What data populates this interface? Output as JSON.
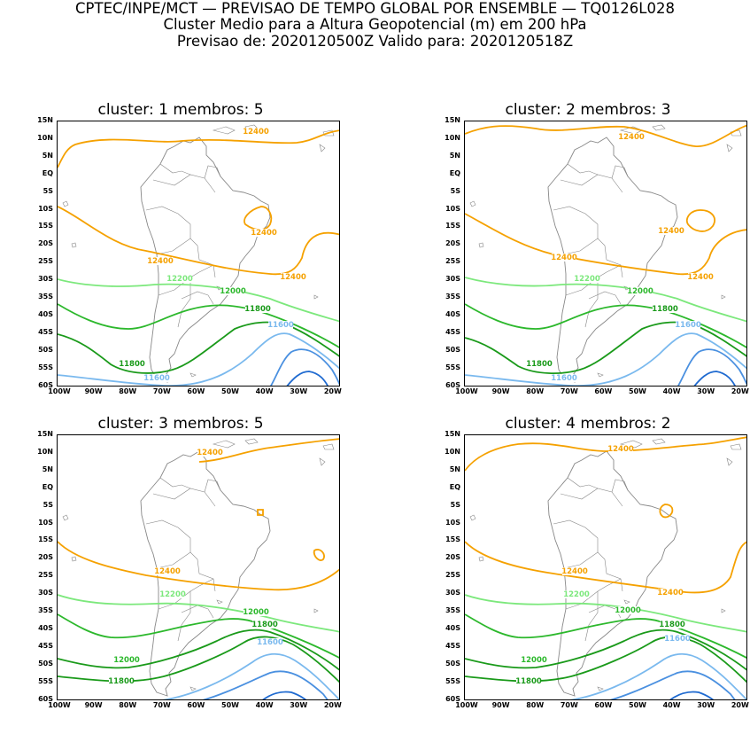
{
  "header": {
    "line1": "CPTEC/INPE/MCT — PREVISAO DE TEMPO GLOBAL POR ENSEMBLE — TQ0126L028",
    "line2": "Cluster Medio para a Altura Geopotencial (m) em 200 hPa",
    "line3": "Previsao de: 2020120500Z    Valido para: 2020120518Z"
  },
  "axes": {
    "lat_labels": [
      "15N",
      "10N",
      "5N",
      "EQ",
      "5S",
      "10S",
      "15S",
      "20S",
      "25S",
      "30S",
      "35S",
      "40S",
      "45S",
      "50S",
      "55S",
      "60S"
    ],
    "lon_labels": [
      "100W",
      "90W",
      "80W",
      "70W",
      "60W",
      "50W",
      "40W",
      "30W",
      "20W"
    ]
  },
  "colors": {
    "c12400": "#f5a100",
    "c12200": "#7ce87c",
    "c12000": "#2cb82c",
    "c11800": "#1a9a1a",
    "c11600": "#7ab9ee",
    "c11400": "#4a90e0",
    "c11200": "#1f6ad0",
    "coast": "#888888"
  },
  "panels": [
    {
      "title": "cluster: 1   membros: 5",
      "contour_labels": [
        {
          "value": "12400",
          "color_key": "c12400"
        },
        {
          "value": "12400",
          "color_key": "c12400"
        },
        {
          "value": "12400",
          "color_key": "c12400"
        },
        {
          "value": "12400",
          "color_key": "c12400"
        },
        {
          "value": "12200",
          "color_key": "c12200"
        },
        {
          "value": "12000",
          "color_key": "c12000"
        },
        {
          "value": "11800",
          "color_key": "c11800"
        },
        {
          "value": "11800",
          "color_key": "c11800"
        },
        {
          "value": "11600",
          "color_key": "c11600"
        },
        {
          "value": "11600",
          "color_key": "c11600"
        }
      ]
    },
    {
      "title": "cluster: 2   membros: 3",
      "contour_labels": [
        {
          "value": "12400",
          "color_key": "c12400"
        },
        {
          "value": "12400",
          "color_key": "c12400"
        },
        {
          "value": "12400",
          "color_key": "c12400"
        },
        {
          "value": "12400",
          "color_key": "c12400"
        },
        {
          "value": "12200",
          "color_key": "c12200"
        },
        {
          "value": "12000",
          "color_key": "c12000"
        },
        {
          "value": "11800",
          "color_key": "c11800"
        },
        {
          "value": "11800",
          "color_key": "c11800"
        },
        {
          "value": "11600",
          "color_key": "c11600"
        },
        {
          "value": "11600",
          "color_key": "c11600"
        }
      ]
    },
    {
      "title": "cluster: 3   membros: 5",
      "contour_labels": [
        {
          "value": "12400",
          "color_key": "c12400"
        },
        {
          "value": "12400",
          "color_key": "c12400"
        },
        {
          "value": "12200",
          "color_key": "c12200"
        },
        {
          "value": "12000",
          "color_key": "c12000"
        },
        {
          "value": "12000",
          "color_key": "c12000"
        },
        {
          "value": "11800",
          "color_key": "c11800"
        },
        {
          "value": "11800",
          "color_key": "c11800"
        },
        {
          "value": "11600",
          "color_key": "c11600"
        }
      ]
    },
    {
      "title": "cluster: 4   membros: 2",
      "contour_labels": [
        {
          "value": "12400",
          "color_key": "c12400"
        },
        {
          "value": "12400",
          "color_key": "c12400"
        },
        {
          "value": "12400",
          "color_key": "c12400"
        },
        {
          "value": "12200",
          "color_key": "c12200"
        },
        {
          "value": "12000",
          "color_key": "c12000"
        },
        {
          "value": "12000",
          "color_key": "c12000"
        },
        {
          "value": "11800",
          "color_key": "c11800"
        },
        {
          "value": "11800",
          "color_key": "c11800"
        },
        {
          "value": "11600",
          "color_key": "c11600"
        }
      ]
    }
  ]
}
